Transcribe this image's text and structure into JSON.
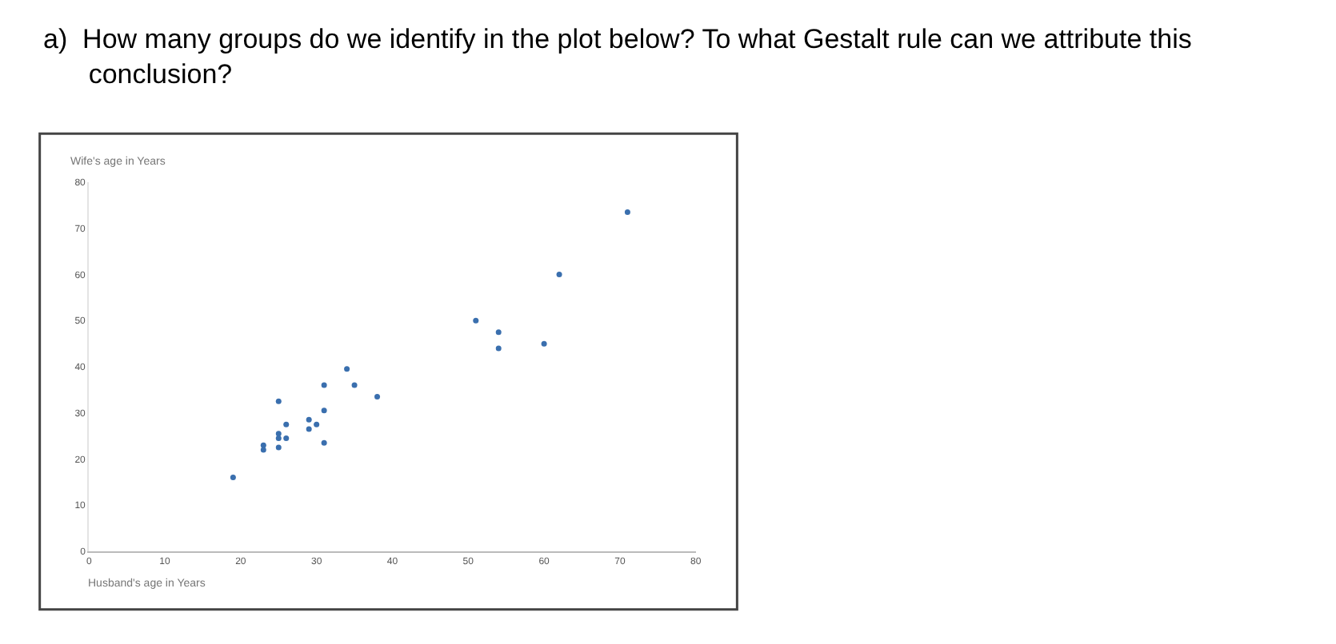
{
  "chart_data": {
    "type": "scatter",
    "title": "a)  How many groups do we identify in the plot below? To what Gestalt rule can we attribute this conclusion?",
    "xlabel": "Husband's age in Years",
    "ylabel": "Wife's age in Years",
    "x": [
      19,
      23,
      23,
      25,
      25,
      25,
      25,
      26,
      26,
      29,
      29,
      30,
      31,
      31,
      31,
      34,
      35,
      38,
      71,
      62,
      51,
      54,
      54,
      60
    ],
    "series": [
      {
        "color": "#3a6fae",
        "values": [
          16,
          23,
          22,
          32.5,
          25.5,
          24.5,
          22.5,
          27.5,
          24.5,
          28.5,
          26.5,
          27.5,
          36,
          30.5,
          23.5,
          39.5,
          36,
          33.5,
          73.5,
          60,
          50,
          47.5,
          44,
          45
        ]
      }
    ],
    "xlim": [
      0,
      80
    ],
    "xticks": [
      0,
      10,
      20,
      30,
      40,
      50,
      60,
      70,
      80
    ],
    "ylim": [
      0,
      80
    ],
    "yticks": [
      0,
      10,
      20,
      30,
      40,
      50,
      60,
      70,
      80
    ],
    "marker": "circle"
  }
}
